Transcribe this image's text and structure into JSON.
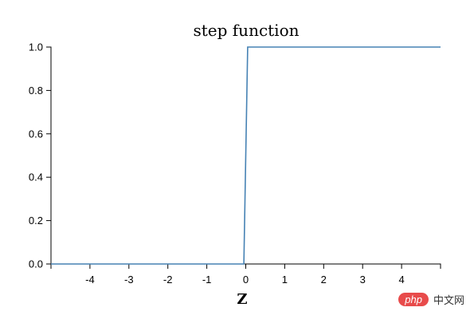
{
  "chart_data": {
    "type": "line",
    "title": "step function",
    "xlabel": "Z",
    "ylabel": "",
    "xlim": [
      -5,
      5
    ],
    "ylim": [
      0,
      1
    ],
    "x_ticks": [
      "-4",
      "-3",
      "-2",
      "-1",
      "0",
      "1",
      "2",
      "3",
      "4"
    ],
    "y_ticks": [
      "0.0",
      "0.2",
      "0.4",
      "0.6",
      "0.8",
      "1.0"
    ],
    "grid": false,
    "series": [
      {
        "x": [
          -5,
          -0.05,
          0.05,
          5
        ],
        "y": [
          0,
          0,
          1,
          1
        ]
      }
    ],
    "colors": {
      "series": "#4682b4"
    }
  },
  "watermark": {
    "badge": "php",
    "text": "中文网"
  }
}
